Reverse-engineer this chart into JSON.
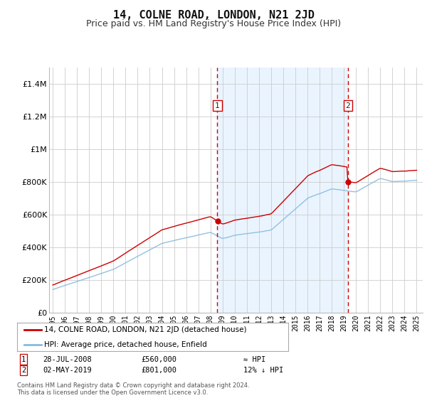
{
  "title": "14, COLNE ROAD, LONDON, N21 2JD",
  "subtitle": "Price paid vs. HM Land Registry's House Price Index (HPI)",
  "title_fontsize": 11,
  "subtitle_fontsize": 9,
  "background_color": "#ffffff",
  "plot_bg_color": "#ffffff",
  "grid_color": "#cccccc",
  "span_fill_color": "#ddeeff",
  "hpi_line_color": "#88bbdd",
  "price_line_color": "#cc0000",
  "vline_color": "#cc0000",
  "ylabel_ticks": [
    "£0",
    "£200K",
    "£400K",
    "£600K",
    "£800K",
    "£1M",
    "£1.2M",
    "£1.4M"
  ],
  "ytick_values": [
    0,
    200000,
    400000,
    600000,
    800000,
    1000000,
    1200000,
    1400000
  ],
  "ylim": [
    0,
    1500000
  ],
  "sale1_year": 2008.57,
  "sale1_price": 560000,
  "sale2_year": 2019.33,
  "sale2_price": 801000,
  "legend_label1": "14, COLNE ROAD, LONDON, N21 2JD (detached house)",
  "legend_label2": "HPI: Average price, detached house, Enfield",
  "legend_color1": "#cc0000",
  "legend_color2": "#88bbdd",
  "annotation1_label": "1",
  "annotation2_label": "2",
  "table_row1": [
    "1",
    "28-JUL-2008",
    "£560,000",
    "≈ HPI"
  ],
  "table_row2": [
    "2",
    "02-MAY-2019",
    "£801,000",
    "12% ↓ HPI"
  ],
  "footer": "Contains HM Land Registry data © Crown copyright and database right 2024.\nThis data is licensed under the Open Government Licence v3.0.",
  "xlim_start": 1994.7,
  "xlim_end": 2025.5
}
